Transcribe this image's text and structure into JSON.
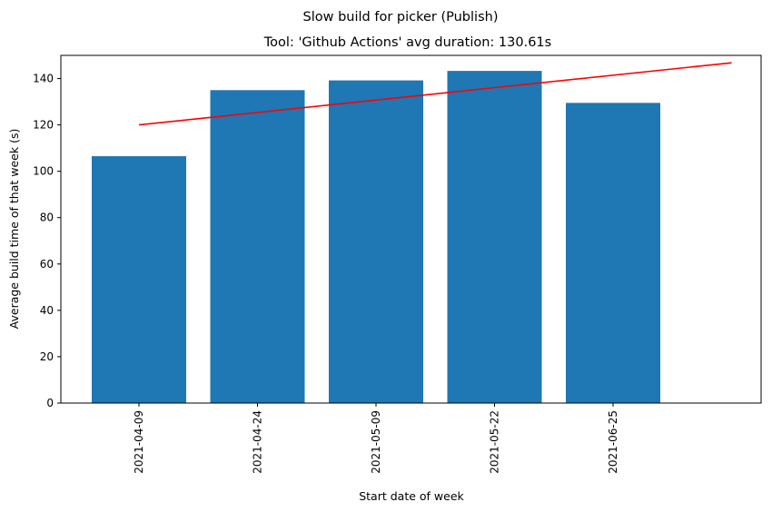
{
  "chart_data": {
    "type": "bar",
    "suptitle": "Slow build for picker (Publish)",
    "title": "Tool: 'Github Actions' avg duration: 130.61s",
    "xlabel": "Start date of week",
    "ylabel": "Average build time of that week (s)",
    "categories": [
      "2021-04-09",
      "2021-04-24",
      "2021-05-09",
      "2021-05-22",
      "2021-06-25"
    ],
    "values": [
      106.5,
      135.0,
      139.2,
      143.3,
      129.5
    ],
    "yticks": [
      0,
      20,
      40,
      60,
      80,
      100,
      120,
      140
    ],
    "ylim": [
      0,
      150
    ],
    "bar_color": "#1f77b4",
    "trend_line": {
      "color": "#ff0000",
      "start": {
        "x": "2021-04-09",
        "y": 120.0
      },
      "end": {
        "x_after_last_category": 1,
        "y": 146.8
      }
    },
    "grid": false,
    "legend": "none"
  }
}
